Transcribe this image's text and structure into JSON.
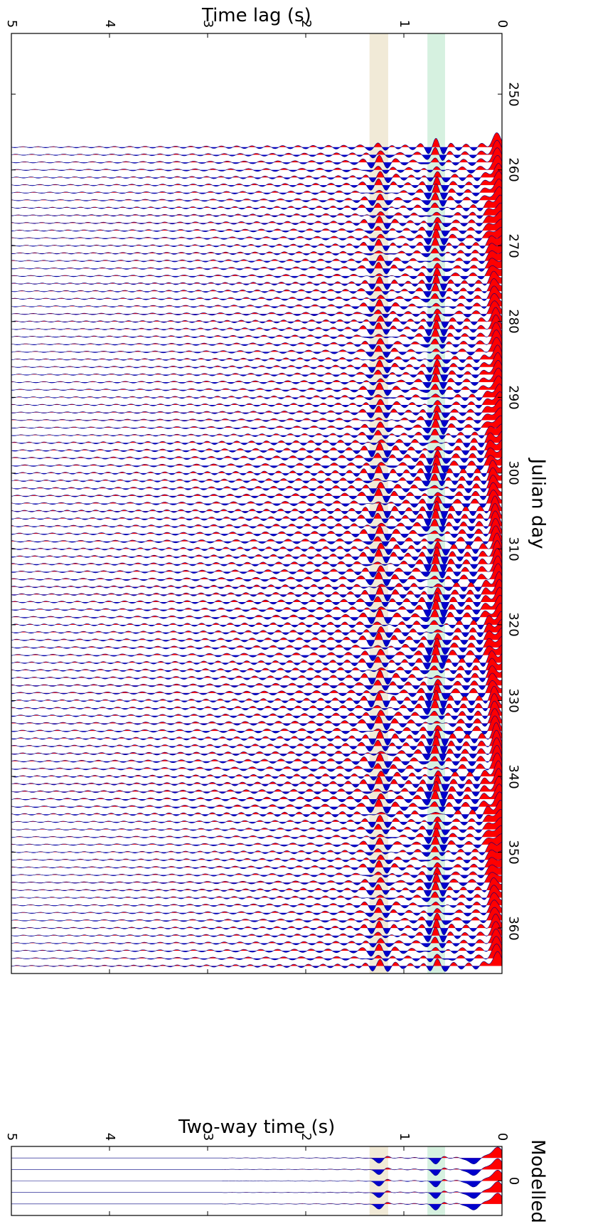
{
  "chart_data": [
    {
      "type": "line",
      "panel": "observed",
      "xlabel": "Julian day",
      "ylabel": "Time lag (s)",
      "xlim": [
        242,
        366
      ],
      "ylim": [
        0,
        5
      ],
      "x_ticks": [
        250,
        260,
        270,
        280,
        290,
        300,
        310,
        320,
        330,
        340,
        350,
        360
      ],
      "y_ticks": [
        0,
        1,
        2,
        3,
        4,
        5
      ],
      "first_day": 257,
      "last_day": 365,
      "fill_colors": {
        "positive": "#ff0000",
        "negative": "#0000cc",
        "trace_line": "#000080"
      },
      "highlight_bands": [
        {
          "from": 0.58,
          "to": 0.76,
          "color": "#cfeedb"
        },
        {
          "from": 1.16,
          "to": 1.35,
          "color": "#efe6d0"
        }
      ]
    },
    {
      "type": "line",
      "panel": "modelled",
      "title": "Modelled",
      "xlabel": "",
      "ylabel": "Two-way time (s)",
      "xlim": [
        -0.6,
        0.6
      ],
      "ylim": [
        0,
        5
      ],
      "x_ticks": [
        0
      ],
      "y_ticks": [
        0,
        1,
        2,
        3,
        4,
        5
      ],
      "fill_colors": {
        "positive": "#ff0000",
        "negative": "#0000cc",
        "trace_line": "#000080"
      },
      "highlight_bands": [
        {
          "from": 0.58,
          "to": 0.76,
          "color": "#cfeedb"
        },
        {
          "from": 1.16,
          "to": 1.35,
          "color": "#efe6d0"
        }
      ]
    }
  ]
}
